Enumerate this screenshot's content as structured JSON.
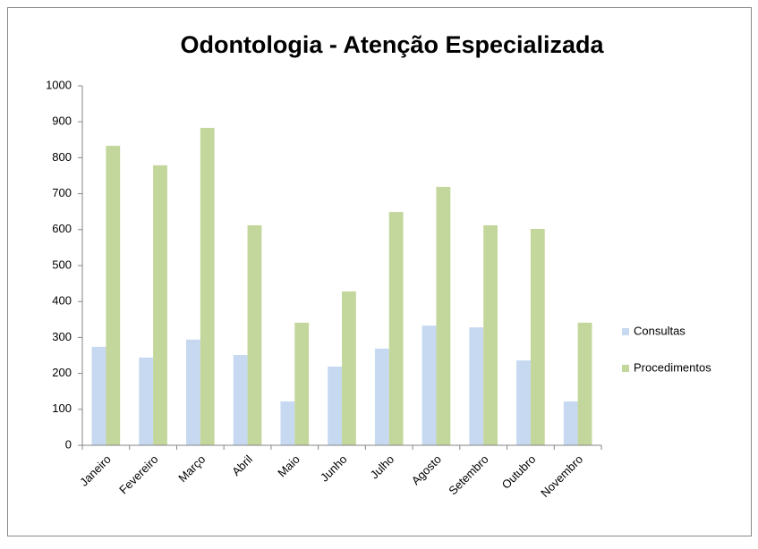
{
  "chart_data": {
    "type": "bar",
    "title": "Odontologia - Atenção Especializada",
    "categories": [
      "Janeiro",
      "Fevereiro",
      "Março",
      "Abril",
      "Maio",
      "Junho",
      "Julho",
      "Agosto",
      "Setembro",
      "Outubro",
      "Novembro"
    ],
    "series": [
      {
        "name": "Consultas",
        "color": "#c6d9f1",
        "values": [
          274,
          244,
          294,
          251,
          122,
          219,
          269,
          333,
          328,
          236,
          122
        ]
      },
      {
        "name": "Procedimentos",
        "color": "#c3d69b",
        "values": [
          833,
          779,
          883,
          612,
          341,
          428,
          649,
          719,
          612,
          602,
          341
        ]
      }
    ],
    "ylim": [
      0,
      1000
    ],
    "yticks": [
      0,
      100,
      200,
      300,
      400,
      500,
      600,
      700,
      800,
      900,
      1000
    ],
    "grid": false,
    "legend": "right"
  }
}
